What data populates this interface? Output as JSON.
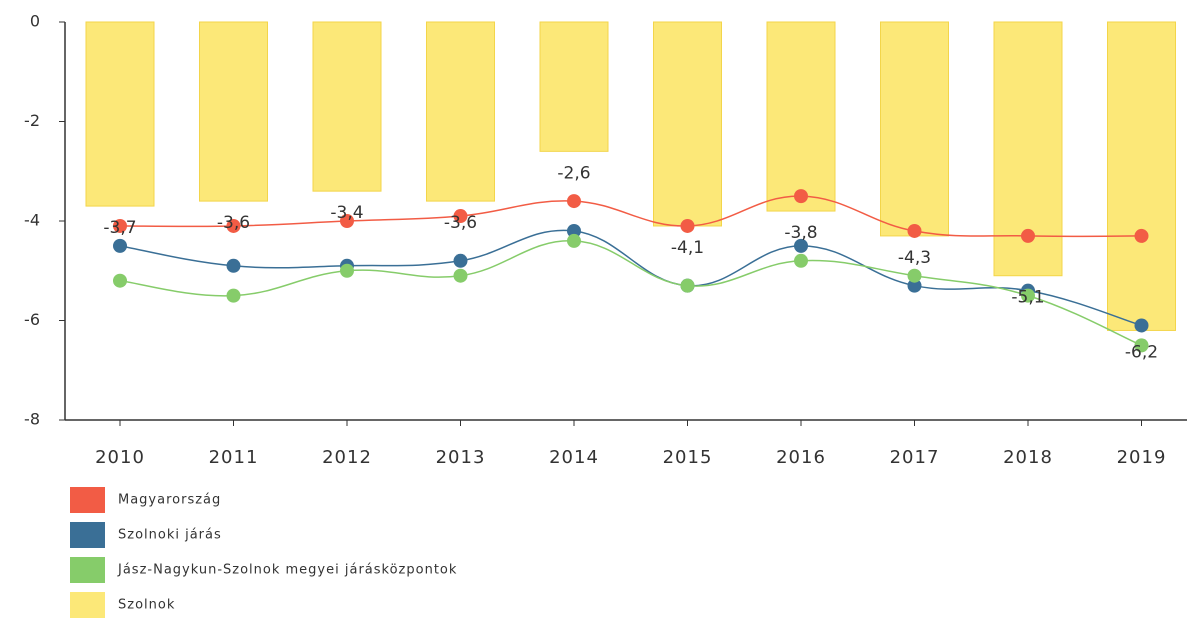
{
  "chart_data": {
    "type": "combo",
    "categories": [
      "2010",
      "2011",
      "2012",
      "2013",
      "2014",
      "2015",
      "2016",
      "2017",
      "2018",
      "2019"
    ],
    "ylim": [
      -8,
      0
    ],
    "yticks": [
      0,
      -2,
      -4,
      -6,
      -8
    ],
    "series": [
      {
        "name": "Magyarország",
        "type": "line",
        "color": "#f25c45",
        "values": [
          -4.1,
          -4.1,
          -4.0,
          -3.9,
          -3.6,
          -4.1,
          -3.5,
          -4.2,
          -4.3,
          -4.3
        ]
      },
      {
        "name": "Szolnoki járás",
        "type": "line",
        "color": "#3a6f96",
        "values": [
          -4.5,
          -4.9,
          -4.9,
          -4.8,
          -4.2,
          -5.3,
          -4.5,
          -5.3,
          -5.4,
          -6.1
        ]
      },
      {
        "name": "Jász-Nagykun-Szolnok megyei járásközpontok",
        "type": "line",
        "color": "#86cc6a",
        "values": [
          -5.2,
          -5.5,
          -5.0,
          -5.1,
          -4.4,
          -5.3,
          -4.8,
          -5.1,
          -5.5,
          -6.5
        ]
      },
      {
        "name": "Szolnok",
        "type": "bar",
        "color": "#fce878",
        "values": [
          -3.7,
          -3.6,
          -3.4,
          -3.6,
          -2.6,
          -4.1,
          -3.8,
          -4.3,
          -5.1,
          -6.2
        ],
        "value_labels": [
          "-3,7",
          "-3,6",
          "-3,4",
          "-3,6",
          "-2,6",
          "-4,1",
          "-3,8",
          "-4,3",
          "-5,1",
          "-6,2"
        ]
      }
    ]
  }
}
